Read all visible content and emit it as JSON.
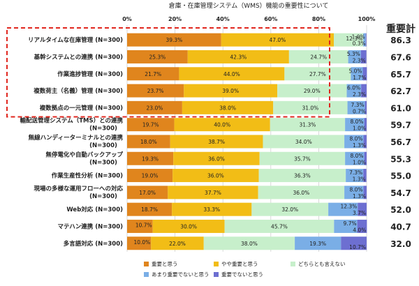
{
  "chart_data": {
    "type": "bar",
    "stacked": "100%",
    "orientation": "horizontal",
    "title": "倉庫・在庫管理システム（WMS）機能の重要性について",
    "x_ticks": [
      "0%",
      "20%",
      "40%",
      "60%",
      "80%",
      "100%"
    ],
    "xlim": [
      0,
      100
    ],
    "score_header": "重要計",
    "categories": [
      {
        "label": "リアルタイムな在庫管理 (N=300)",
        "lines": [
          "リアルタイムな在庫管理 (N=300)"
        ],
        "values": [
          39.3,
          47.0,
          12.3,
          1.0,
          0.3
        ],
        "score": "86.3"
      },
      {
        "label": "基幹システムとの連携 (N=300)",
        "lines": [
          "基幹システムとの連携 (N=300)"
        ],
        "values": [
          25.3,
          42.3,
          24.7,
          5.3,
          2.3
        ],
        "score": "67.6"
      },
      {
        "label": "作業進捗管理 (N=300)",
        "lines": [
          "作業進捗管理 (N=300)"
        ],
        "values": [
          21.7,
          44.0,
          27.7,
          5.0,
          1.7
        ],
        "score": "65.7"
      },
      {
        "label": "複数荷主（名義）管理 (N=300)",
        "lines": [
          "複数荷主（名義）管理 (N=300)"
        ],
        "values": [
          23.7,
          39.0,
          29.0,
          6.0,
          2.3
        ],
        "score": "62.7"
      },
      {
        "label": "複数拠点の一元管理 (N=300)",
        "lines": [
          "複数拠点の一元管理 (N=300)"
        ],
        "values": [
          23.0,
          38.0,
          31.0,
          7.3,
          0.7
        ],
        "score": "61.0"
      },
      {
        "label": "輸配送管理システム（TMS）との連携 (N=300)",
        "lines": [
          "輸配送管理システム（TMS）との連携",
          "(N=300)"
        ],
        "values": [
          19.7,
          40.0,
          31.3,
          8.0,
          1.0
        ],
        "score": "59.7"
      },
      {
        "label": "無線ハンディーターミナルとの連携 (N=300)",
        "lines": [
          "無線ハンディーターミナルとの連携",
          "(N=300)"
        ],
        "values": [
          18.0,
          38.7,
          34.0,
          8.0,
          1.3
        ],
        "score": "56.7"
      },
      {
        "label": "無停電化や自動バックアップ (N=300)",
        "lines": [
          "無停電化や自動バックアップ",
          "(N=300)"
        ],
        "values": [
          19.3,
          36.0,
          35.7,
          8.0,
          1.0
        ],
        "score": "55.3"
      },
      {
        "label": "作業生産性分析 (N=300)",
        "lines": [
          "作業生産性分析 (N=300)"
        ],
        "values": [
          19.0,
          36.0,
          36.3,
          7.3,
          1.3
        ],
        "score": "55.0"
      },
      {
        "label": "現場の多様な運用フローへの対応 (N=300)",
        "lines": [
          "現場の多様な運用フローへの対応",
          "(N=300)"
        ],
        "values": [
          17.0,
          37.7,
          36.0,
          8.0,
          1.3
        ],
        "score": "54.7"
      },
      {
        "label": "Web対応 (N=300)",
        "lines": [
          "Web対応 (N=300)"
        ],
        "values": [
          18.7,
          33.3,
          32.0,
          12.3,
          3.7
        ],
        "score": "52.0"
      },
      {
        "label": "マテハン連携 (N=300)",
        "lines": [
          "マテハン連携 (N=300)"
        ],
        "values": [
          10.7,
          30.0,
          45.7,
          9.7,
          4.0
        ],
        "score": "40.7"
      },
      {
        "label": "多言語対応 (N=300)",
        "lines": [
          "多言語対応 (N=300)"
        ],
        "values": [
          10.0,
          22.0,
          38.0,
          19.3,
          10.7
        ],
        "score": "32.0"
      }
    ],
    "series": [
      {
        "name": "重要と思う",
        "color": "#E0851D"
      },
      {
        "name": "やや重要と思う",
        "color": "#F2BD16"
      },
      {
        "name": "どちらとも言えない",
        "color": "#C7EFCB"
      },
      {
        "name": "あまり重要でないと思う",
        "color": "#7AAEE6"
      },
      {
        "name": "重要でないと思う",
        "color": "#6D6FD1"
      }
    ],
    "highlighted_rows": 5,
    "highlight_color": "#E0261E"
  }
}
